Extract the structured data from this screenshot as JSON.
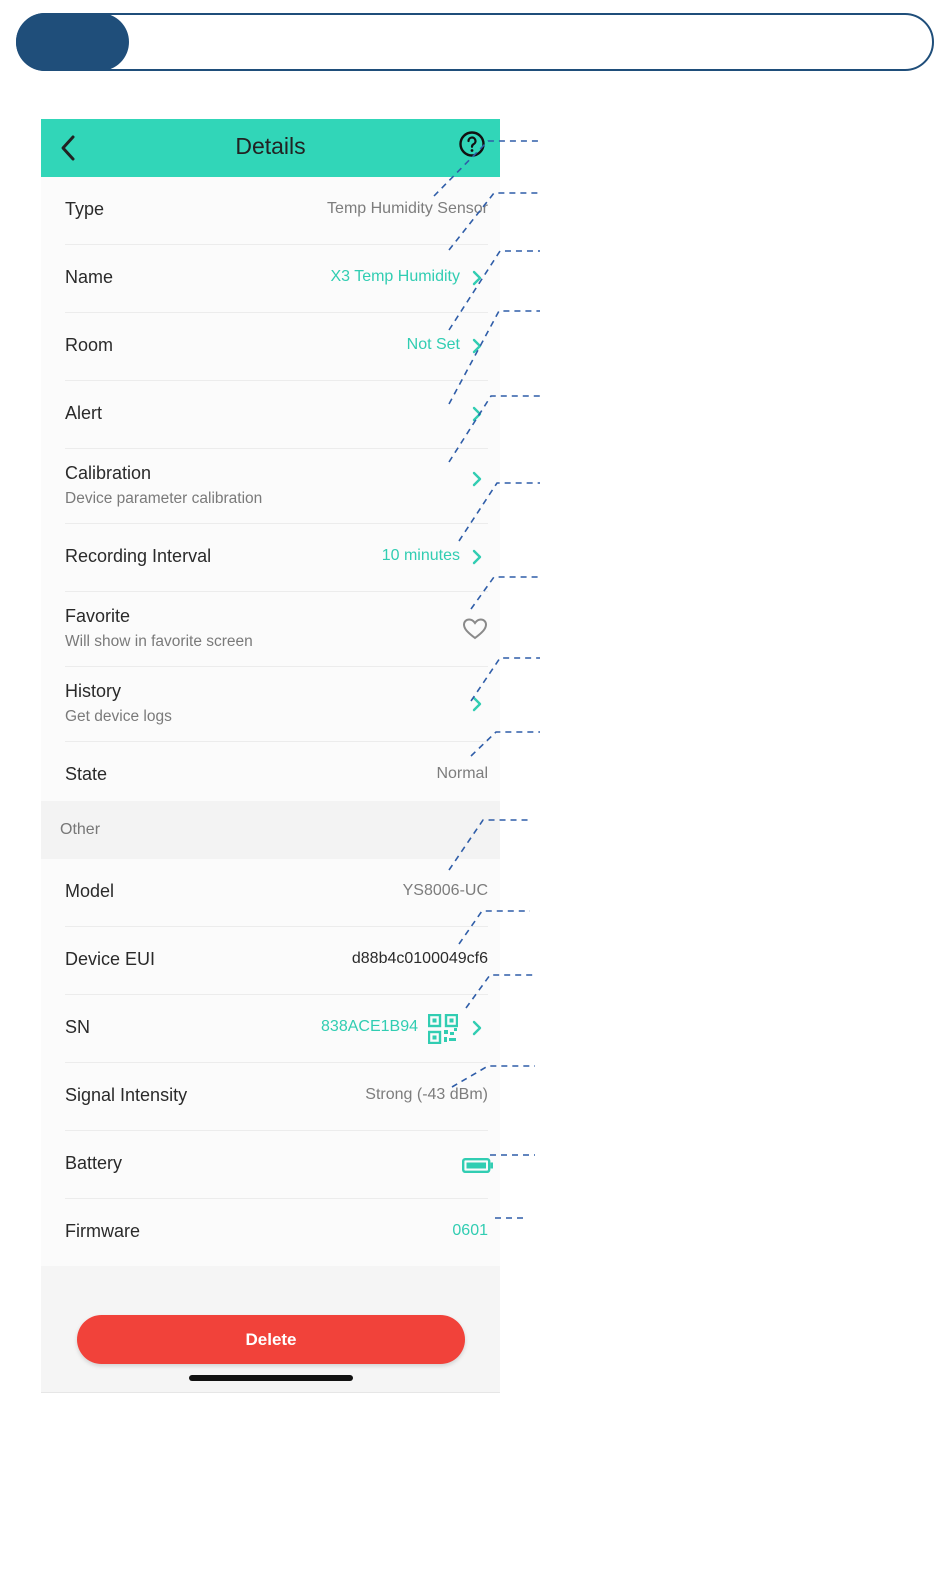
{
  "header": {
    "title": "Details"
  },
  "rows": [
    {
      "label": "Type",
      "value": "Temp Humidity Sensor"
    },
    {
      "label": "Name",
      "value": "X3 Temp Humidity"
    },
    {
      "label": "Room",
      "value": "Not Set"
    },
    {
      "label": "Alert",
      "value": ""
    },
    {
      "label": "Calibration",
      "sub": "Device parameter calibration"
    },
    {
      "label": "Recording Interval",
      "value": "10 minutes"
    },
    {
      "label": "Favorite",
      "sub": "Will show in favorite screen"
    },
    {
      "label": "History",
      "sub": "Get device logs"
    },
    {
      "label": "State",
      "value": "Normal"
    }
  ],
  "section": {
    "label": "Other"
  },
  "rows2": [
    {
      "label": "Model",
      "value": "YS8006-UC"
    },
    {
      "label": "Device EUI",
      "value": "d88b4c0100049cf6"
    },
    {
      "label": "SN",
      "value": "838ACE1B94"
    },
    {
      "label": "Signal Intensity",
      "value": "Strong (-43 dBm)"
    },
    {
      "label": "Battery"
    },
    {
      "label": "Firmware",
      "value": "0601"
    }
  ],
  "delete_label": "Delete",
  "colors": {
    "accent": "#31d6b8",
    "link": "#31cdb2",
    "danger": "#f1423a",
    "pill": "#1f4e7a",
    "callout": "#2f5da8"
  }
}
